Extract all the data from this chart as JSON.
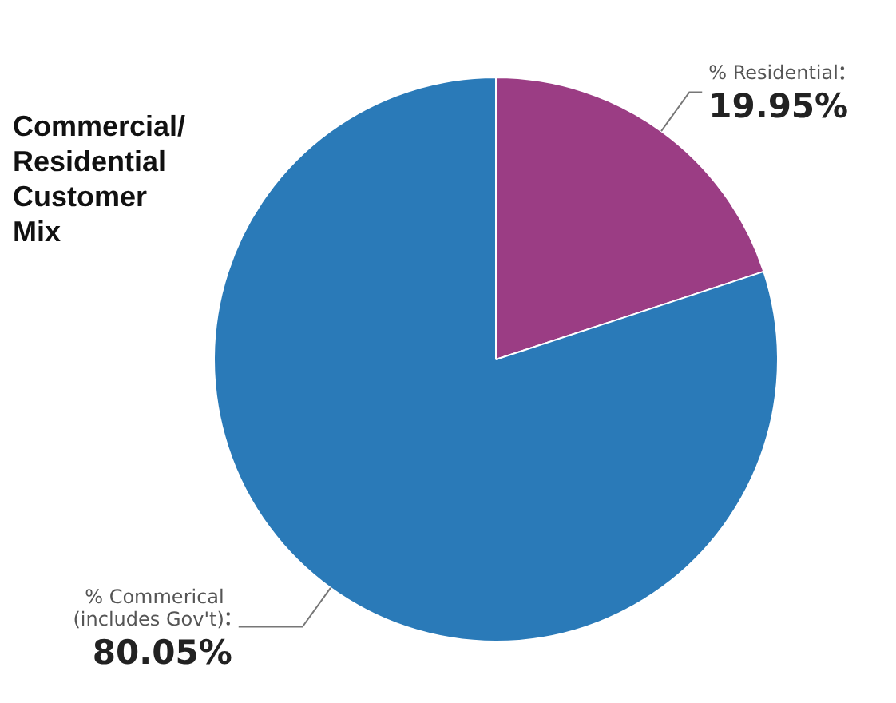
{
  "chart_data": {
    "type": "pie",
    "title": "Commercial/ Residential Customer Mix",
    "categories": [
      "% Residential",
      "% Commerical (includes Gov't)"
    ],
    "values": [
      19.95,
      80.05
    ],
    "colors": [
      "#9b3d84",
      "#2a7ab8"
    ],
    "value_labels": [
      "19.95%",
      "80.05%"
    ],
    "legend": false
  }
}
